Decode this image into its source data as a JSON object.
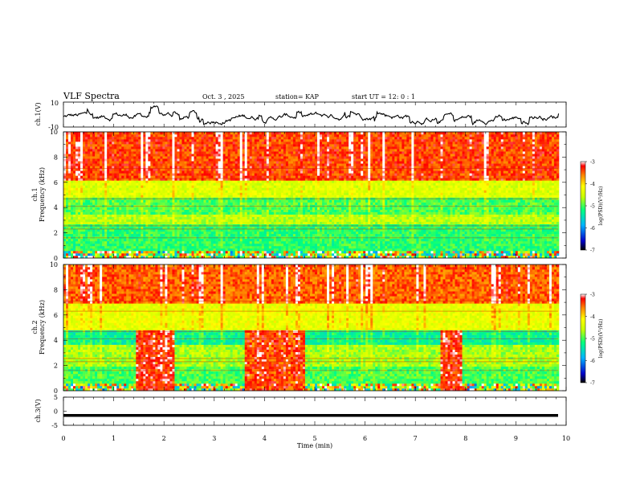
{
  "header": {
    "title": "VLF Spectra",
    "date": "Oct. 3 , 2025",
    "station": "station= KAP",
    "start": "start UT = 12: 0 : 1"
  },
  "chart_data": [
    {
      "type": "line",
      "panel": "ch1-waveform",
      "ylabel": "ch.1(V)",
      "ylim": [
        -10,
        10
      ],
      "ytick_labels": [
        "10",
        "-10"
      ],
      "xlim": [
        0,
        10
      ],
      "trace_color": "#000000"
    },
    {
      "type": "heatmap",
      "panel": "ch1-spectrogram",
      "ylabel": "ch.1\nFrequency (kHz)",
      "ylabel_lines": [
        "ch.1",
        "Frequency (kHz)"
      ],
      "ylim": [
        0,
        10
      ],
      "ytick_labels": [
        "0",
        "2",
        "4",
        "6",
        "8",
        "10"
      ],
      "xlim": [
        0,
        10
      ],
      "colorbar": {
        "label": "log(PSD)(V²/Hz)",
        "ticks": [
          "-3",
          "-4",
          "-5",
          "-6",
          "-7"
        ],
        "range": [
          -7,
          -3
        ]
      },
      "bands_khz": [
        {
          "from": 0.0,
          "to": 0.6,
          "level": "mixed-low"
        },
        {
          "from": 0.6,
          "to": 2.6,
          "level": -5.1
        },
        {
          "from": 2.6,
          "to": 3.4,
          "level": -4.6
        },
        {
          "from": 3.4,
          "to": 4.9,
          "level": -5.0
        },
        {
          "from": 4.9,
          "to": 6.2,
          "level": -4.4
        },
        {
          "from": 6.2,
          "to": 10.0,
          "level": -3.4
        }
      ]
    },
    {
      "type": "heatmap",
      "panel": "ch2-spectrogram",
      "ylabel": "ch.2\nFrequency (kHz)",
      "ylabel_lines": [
        "ch.2",
        "Frequency (kHz)"
      ],
      "ylim": [
        0,
        10
      ],
      "ytick_labels": [
        "0",
        "2",
        "4",
        "6",
        "8",
        "10"
      ],
      "xlim": [
        0,
        10
      ],
      "colorbar": {
        "label": "log(PSD)(V²/Hz)",
        "ticks": [
          "-3",
          "-4",
          "-5",
          "-6",
          "-7"
        ],
        "range": [
          -7,
          -3
        ]
      },
      "bands_khz": [
        {
          "from": 0.0,
          "to": 0.6,
          "level": "mixed-low"
        },
        {
          "from": 0.6,
          "to": 2.0,
          "level": -5.0
        },
        {
          "from": 2.0,
          "to": 3.6,
          "level": -4.7
        },
        {
          "from": 3.6,
          "to": 4.8,
          "level": -5.3
        },
        {
          "from": 4.8,
          "to": 7.0,
          "level": -4.3
        },
        {
          "from": 7.0,
          "to": 10.0,
          "level": -3.5
        }
      ],
      "interference_bursts_min": [
        {
          "from": 1.42,
          "to": 2.2,
          "fmax_khz": 4.8,
          "level": -3.3
        },
        {
          "from": 3.6,
          "to": 4.8,
          "fmax_khz": 4.8,
          "level": -3.4
        },
        {
          "from": 7.48,
          "to": 7.95,
          "fmax_khz": 4.8,
          "level": -3.3
        }
      ]
    },
    {
      "type": "line",
      "panel": "ch3-waveform",
      "ylabel": "ch.3(V)",
      "ylim": [
        -5,
        5
      ],
      "ytick_labels": [
        "5",
        "0",
        "-5"
      ],
      "xlim": [
        0,
        10
      ],
      "xlabel": "Time (min)",
      "xtick_labels": [
        "0",
        "1",
        "2",
        "3",
        "4",
        "5",
        "6",
        "7",
        "8",
        "9",
        "10"
      ],
      "trace_level_v": -1.5,
      "trace_band_v": [
        -2.0,
        -1.0
      ],
      "data_end_min": 9.84
    }
  ]
}
